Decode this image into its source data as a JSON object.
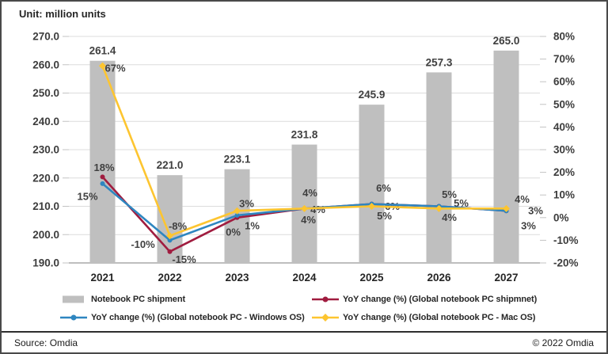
{
  "meta": {
    "unit_label": "Unit: million units",
    "source": "Source: Omdia",
    "copyright": "© 2022 Omdia"
  },
  "chart_data": {
    "type": "bar+line combo",
    "categories": [
      2021,
      2022,
      2023,
      2024,
      2025,
      2026,
      2027
    ],
    "bar_series": {
      "name": "Notebook PC shipment",
      "values": [
        261.4,
        221.0,
        223.1,
        231.8,
        245.9,
        257.3,
        265.0
      ],
      "axis": "left",
      "color": "#bfbfbf"
    },
    "line_series": [
      {
        "name": "YoY change (%) (Global notebook PC shipmnet)",
        "values": [
          18,
          -15,
          0,
          4,
          6,
          5,
          3
        ],
        "color": "#a01c3f",
        "marker": "circle",
        "axis": "right"
      },
      {
        "name": "YoY change (%) (Global notebook PC - Windows OS)",
        "values": [
          15,
          -10,
          1,
          4,
          6,
          5,
          3
        ],
        "color": "#2e86c0",
        "marker": "circle",
        "axis": "right"
      },
      {
        "name": "YoY change (%) (Global notebook PC - Mac OS)",
        "values": [
          67,
          -8,
          3,
          4,
          5,
          4,
          4
        ],
        "color": "#fdc530",
        "marker": "diamond",
        "axis": "right"
      }
    ],
    "left_axis": {
      "min": 190,
      "max": 270,
      "ticks": [
        270,
        260,
        250,
        240,
        230,
        220,
        210,
        200,
        190
      ],
      "format": "one_decimal"
    },
    "right_axis": {
      "min": -20,
      "max": 80,
      "ticks": [
        80,
        70,
        60,
        50,
        40,
        30,
        20,
        10,
        0,
        -10,
        -20
      ],
      "format": "percent"
    },
    "grid": "horizontal",
    "legend_position": "bottom"
  }
}
